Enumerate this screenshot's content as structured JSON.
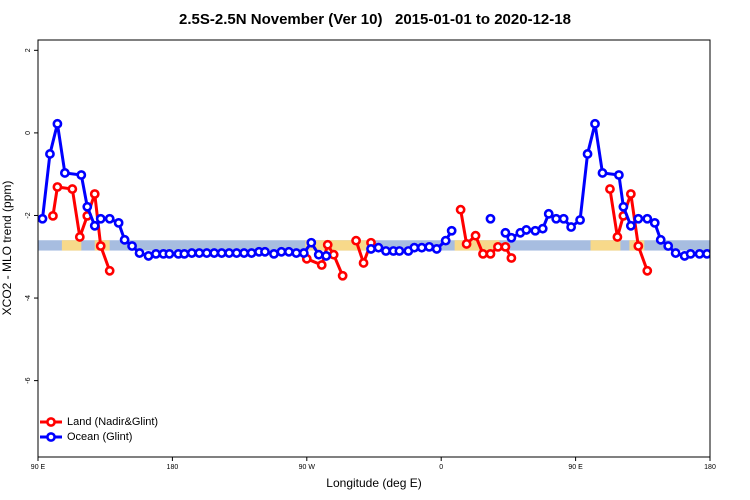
{
  "chart_data": {
    "type": "line",
    "title": "2.5S-2.5N November (Ver 10)   2015-01-01 to 2020-12-18",
    "x_label": "Longitude (deg E)",
    "y_label": "XCO2 - MLO trend (ppm)",
    "xlim": [
      90,
      540
    ],
    "ylim": [
      -7.85,
      2.25
    ],
    "xticks": [
      {
        "value": 90,
        "label": "90 E"
      },
      180,
      {
        "value": 270,
        "label": "90 W"
      },
      {
        "value": 360,
        "label": "0"
      },
      {
        "value": 450,
        "label": "90 E"
      },
      {
        "value": 540,
        "label": "180"
      }
    ],
    "yticks": [
      2,
      0,
      -2,
      -4,
      -6
    ],
    "legend": "bottomleft",
    "band": {
      "range": [
        -2.85,
        -2.6
      ],
      "color": "#a7bde0",
      "land_color": "#f7d98a",
      "land": [
        [
          106,
          119
        ],
        [
          128,
          138
        ],
        [
          269,
          311
        ],
        [
          369,
          399
        ],
        [
          460,
          480
        ],
        [
          486,
          496
        ]
      ]
    },
    "series": [
      {
        "name": "Land (Nadir&Glint)",
        "color": "#ff0000",
        "x": [
          100,
          103,
          113,
          118,
          123,
          128,
          132,
          138,
          null,
          270,
          280,
          284,
          288,
          294,
          null,
          303,
          308,
          313,
          null,
          373,
          377,
          383,
          388,
          393,
          398,
          403,
          407,
          null,
          473,
          478,
          482,
          487,
          492,
          498
        ],
        "values": [
          -2.01,
          -1.31,
          -1.36,
          -2.52,
          -2.01,
          -1.48,
          -2.74,
          -3.34,
          null,
          -3.05,
          -3.2,
          -2.71,
          -2.95,
          -3.46,
          null,
          -2.61,
          -3.15,
          -2.66,
          null,
          -1.86,
          -2.69,
          -2.49,
          -2.93,
          -2.93,
          -2.76,
          -2.76,
          -3.03,
          null,
          -1.36,
          -2.52,
          -2.01,
          -1.48,
          -2.74,
          -3.34
        ]
      },
      {
        "name": "Ocean (Glint)",
        "color": "#0000ff",
        "x": [
          93,
          98,
          103,
          108,
          119,
          123,
          128,
          132,
          138,
          144,
          148,
          153,
          158,
          164,
          169,
          174,
          178,
          184,
          188,
          193,
          198,
          203,
          208,
          213,
          218,
          223,
          228,
          233,
          238,
          242,
          248,
          253,
          258,
          263,
          268,
          273,
          278,
          283,
          null,
          313,
          318,
          323,
          328,
          332,
          338,
          342,
          347,
          352,
          357,
          363,
          367,
          null,
          393,
          null,
          403,
          407,
          413,
          417,
          423,
          428,
          432,
          437,
          442,
          447,
          453,
          458,
          463,
          468,
          479,
          482,
          487,
          492,
          498,
          503,
          507,
          512,
          517,
          523,
          527,
          533,
          538
        ],
        "values": [
          -2.08,
          -0.51,
          0.22,
          -0.97,
          -1.02,
          -1.79,
          -2.25,
          -2.08,
          -2.08,
          -2.18,
          -2.59,
          -2.74,
          -2.91,
          -2.98,
          -2.93,
          -2.93,
          -2.93,
          -2.93,
          -2.93,
          -2.91,
          -2.91,
          -2.91,
          -2.91,
          -2.91,
          -2.91,
          -2.91,
          -2.91,
          -2.91,
          -2.88,
          -2.88,
          -2.93,
          -2.88,
          -2.88,
          -2.91,
          -2.91,
          -2.66,
          -2.95,
          -2.98,
          null,
          -2.81,
          -2.78,
          -2.86,
          -2.86,
          -2.86,
          -2.86,
          -2.78,
          -2.78,
          -2.76,
          -2.81,
          -2.61,
          -2.37,
          null,
          -2.08,
          null,
          -2.42,
          -2.54,
          -2.42,
          -2.35,
          -2.37,
          -2.32,
          -1.96,
          -2.08,
          -2.08,
          -2.28,
          -2.11,
          -0.51,
          0.22,
          -0.97,
          -1.02,
          -1.79,
          -2.25,
          -2.08,
          -2.08,
          -2.18,
          -2.59,
          -2.74,
          -2.91,
          -2.98,
          -2.93,
          -2.93,
          -2.93
        ]
      }
    ]
  }
}
